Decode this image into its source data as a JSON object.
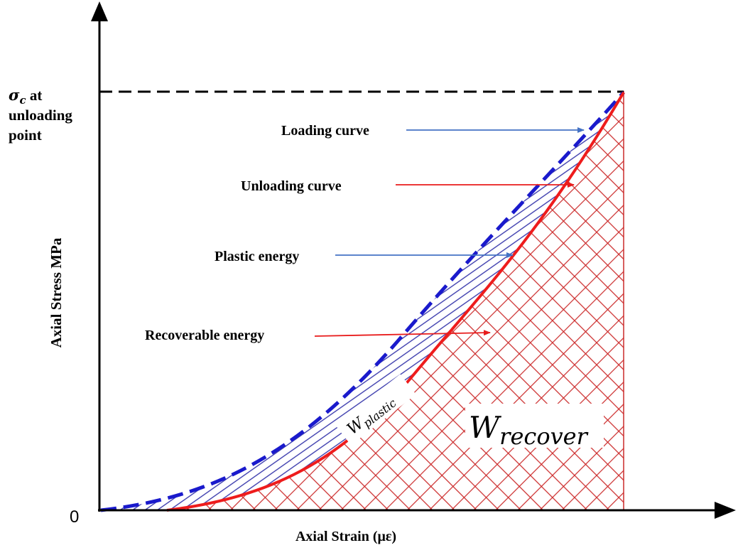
{
  "axes": {
    "x_label": "Axial Strain (με)",
    "y_label": "Axial Stress MPa",
    "origin_label": "0"
  },
  "unloading_point": {
    "symbol": "σ",
    "subscript": "c",
    "line1_suffix": " at",
    "line2": "unloading",
    "line3": "point"
  },
  "annotations": {
    "loading_curve": "Loading curve",
    "unloading_curve": "Unloading curve",
    "plastic_energy": "Plastic energy",
    "recoverable_energy": "Recoverable energy"
  },
  "region_labels": {
    "w_plastic_main": "W",
    "w_plastic_sub": "plastic",
    "w_recover_main": "W",
    "w_recover_sub": "recover"
  },
  "colors": {
    "loading_curve": "#1a1acc",
    "unloading_curve": "#ee1c1c",
    "blue_arrow": "#4472c4",
    "red_arrow": "#e81c1c",
    "hatch_blue": "#3030a8",
    "hatch_red": "#cc2b2b"
  }
}
